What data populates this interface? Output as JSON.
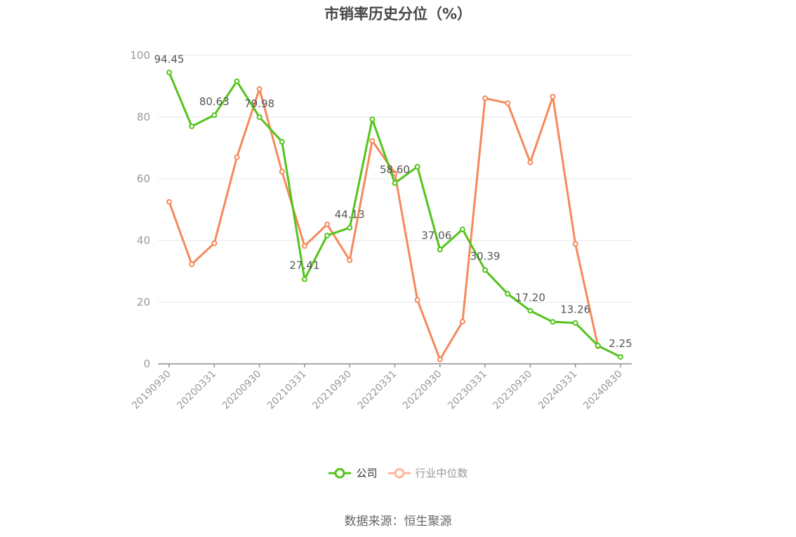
{
  "title": "市销率历史分位（%）",
  "source": "数据来源：恒生聚源",
  "legend": [
    {
      "label": "公司",
      "color": "#52c41a",
      "text_color": "#333333"
    },
    {
      "label": "行业中位数",
      "color": "#ffb59a",
      "text_color": "#999999"
    }
  ],
  "chart_data": {
    "type": "line",
    "title": "市销率历史分位（%）",
    "xlabel": "",
    "ylabel": "",
    "ylim": [
      0,
      100
    ],
    "yticks": [
      0,
      20,
      40,
      60,
      80,
      100
    ],
    "grid": true,
    "legend_position": "bottom",
    "x": [
      "20190930",
      "20191231",
      "20200331",
      "20200630",
      "20200930",
      "20201231",
      "20210331",
      "20210630",
      "20210930",
      "20211231",
      "20220331",
      "20220630",
      "20220930",
      "20221231",
      "20230331",
      "20230630",
      "20230930",
      "20231231",
      "20240331",
      "20240630",
      "20240830"
    ],
    "x_tick_labels_shown": [
      "20190930",
      "20200331",
      "20200930",
      "20210331",
      "20210930",
      "20220331",
      "20220930",
      "20230331",
      "20230930",
      "20240331",
      "20240830"
    ],
    "series": [
      {
        "name": "公司",
        "color": "#52c41a",
        "values": [
          94.45,
          77.0,
          80.63,
          91.6,
          79.98,
          72.0,
          27.41,
          41.6,
          44.13,
          79.3,
          58.6,
          63.9,
          37.06,
          43.6,
          30.39,
          22.7,
          17.2,
          13.6,
          13.26,
          5.9,
          2.25
        ],
        "data_labels": {
          "0": "94.45",
          "2": "80.63",
          "4": "79.98",
          "6": "27.41",
          "8": "44.13",
          "10": "58.60",
          "12": "37.06",
          "14": "30.39",
          "16": "17.20",
          "18": "13.26",
          "20": "2.25"
        }
      },
      {
        "name": "行业中位数",
        "color": "#f5895a",
        "values": [
          52.5,
          32.3,
          39.1,
          67.0,
          89.1,
          62.3,
          38.2,
          45.2,
          33.6,
          72.3,
          61.8,
          20.7,
          1.4,
          13.7,
          86.1,
          84.5,
          65.3,
          86.6,
          38.9,
          5.7,
          null
        ]
      }
    ]
  }
}
